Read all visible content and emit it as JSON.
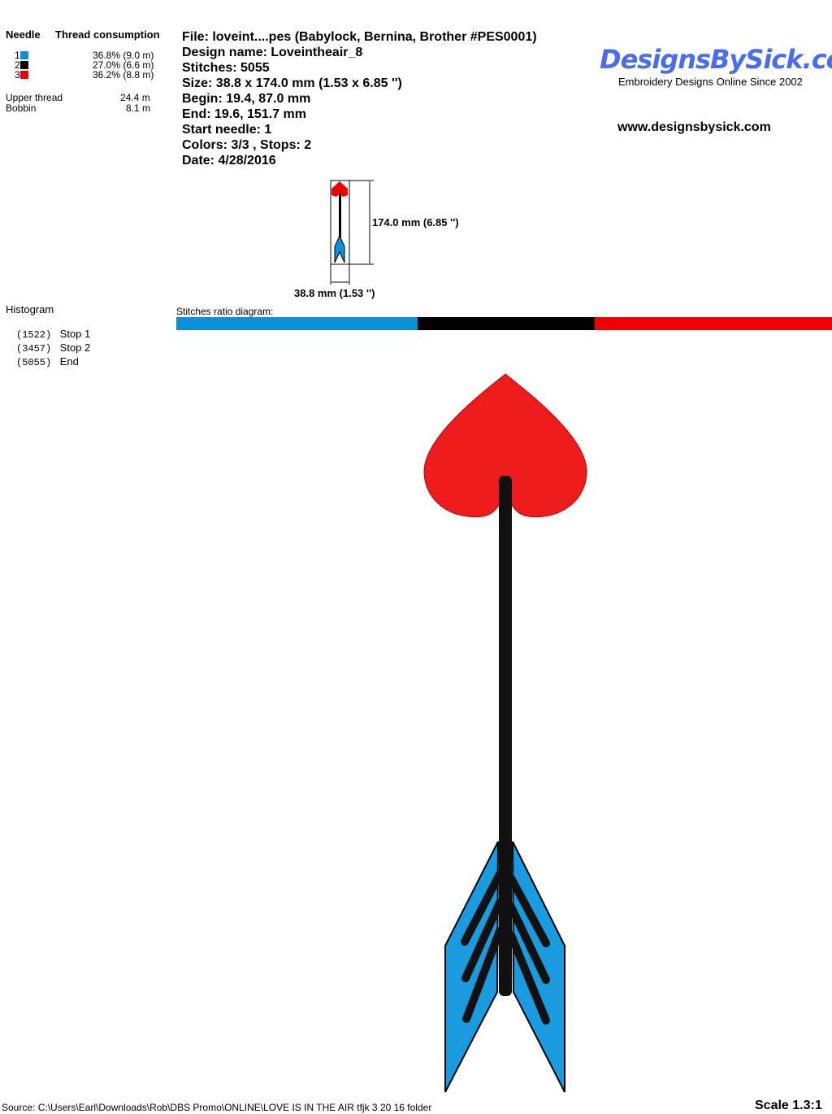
{
  "header": {
    "needle_label": "Needle",
    "thread_label": "Thread consumption"
  },
  "needles": [
    {
      "num": "1",
      "color": "#0a90d8",
      "pct": "36.8% (9.0 m)"
    },
    {
      "num": "2",
      "color": "#000000",
      "pct": "27.0% (6.6 m)"
    },
    {
      "num": "3",
      "color": "#f00000",
      "pct": "36.2% (8.8 m)"
    }
  ],
  "totals": {
    "upper_label": "Upper thread",
    "upper_value": "24.4 m",
    "bobbin_label": "Bobbin",
    "bobbin_value": "8.1 m"
  },
  "info": {
    "file": "File: loveint....pes  (Babylock, Bernina, Brother #PES0001)",
    "design": "Design name: Loveintheair_8",
    "stitches": "Stitches: 5055",
    "size": "Size: 38.8 x 174.0 mm (1.53 x 6.85 '')",
    "begin": "Begin: 19.4, 87.0 mm",
    "end": "End: 19.6, 151.7 mm",
    "start_needle": "Start needle: 1",
    "colors": "Colors: 3/3 , Stops: 2",
    "date": "Date: 4/28/2016"
  },
  "logo": {
    "brand": "DesignsBySick.com",
    "tagline": "Embroidery Designs Online Since 2002",
    "url": "www.designsbysick.com"
  },
  "preview": {
    "height_label": "174.0 mm (6.85 '')",
    "width_label": "38.8 mm (1.53 '')"
  },
  "histogram": {
    "title": "Histogram",
    "stops": [
      {
        "count": "(1522)",
        "label": "Stop 1"
      },
      {
        "count": "(3457)",
        "label": "Stop 2"
      },
      {
        "count": "(5055)",
        "label": "End"
      }
    ]
  },
  "ratio": {
    "title": "Stitches ratio diagram:",
    "segments": [
      {
        "color": "#0a90d8",
        "pct": 36.8
      },
      {
        "color": "#000000",
        "pct": 27.0
      },
      {
        "color": "#f00000",
        "pct": 36.2
      }
    ]
  },
  "footer": {
    "source": "Source: C:\\Users\\Earl\\Downloads\\Rob\\DBS Promo\\ONLINE\\LOVE IS IN THE AIR tfjk 3 20 16 folder",
    "scale": "Scale 1.3:1"
  }
}
